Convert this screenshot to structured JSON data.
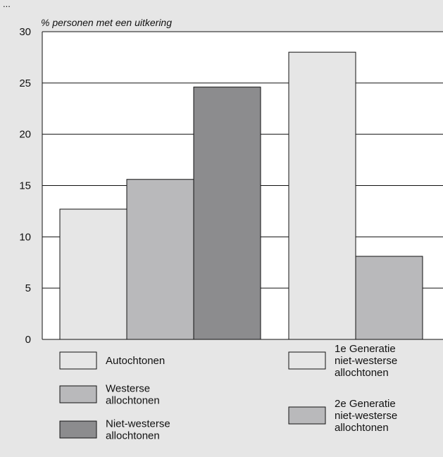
{
  "header_text": "...",
  "chart_data": {
    "type": "bar",
    "ylabel": "% personen met een uitkering",
    "ylim": [
      0,
      30
    ],
    "yticks": [
      "0",
      "5",
      "10",
      "15",
      "20",
      "25",
      "30"
    ],
    "grid": true,
    "groups": [
      {
        "bars": [
          {
            "series": "Autochtonen",
            "value": 12.7
          },
          {
            "series": "Westerse allochtonen",
            "value": 15.6
          },
          {
            "series": "Niet-westerse allochtonen",
            "value": 24.6
          }
        ]
      },
      {
        "bars": [
          {
            "series": "1e Generatie niet-westerse allochtonen",
            "value": 28.0
          },
          {
            "series": "2e Generatie niet-westerse allochtonen",
            "value": 8.1
          }
        ]
      }
    ],
    "legend": [
      {
        "lines": [
          "Autochtonen"
        ],
        "color": "#e6e6e6"
      },
      {
        "lines": [
          "Westerse",
          "allochtonen"
        ],
        "color": "#b9b9bb"
      },
      {
        "lines": [
          "Niet-westerse",
          "allochtonen"
        ],
        "color": "#8c8c8e"
      },
      {
        "lines": [
          "1e Generatie",
          "niet-westerse",
          "allochtonen"
        ],
        "color": "#e6e6e6"
      },
      {
        "lines": [
          "2e Generatie",
          "niet-westerse",
          "allochtonen"
        ],
        "color": "#b9b9bb"
      }
    ],
    "legend_placement": "bottom",
    "colors": {
      "Autochtonen": "#e6e6e6",
      "Westerse allochtonen": "#b9b9bb",
      "Niet-westerse allochtonen": "#8c8c8e",
      "1e Generatie niet-westerse allochtonen": "#e6e6e6",
      "2e Generatie niet-westerse allochtonen": "#b9b9bb",
      "background": "#e6e6e6",
      "plot_background": "#ffffff"
    }
  }
}
